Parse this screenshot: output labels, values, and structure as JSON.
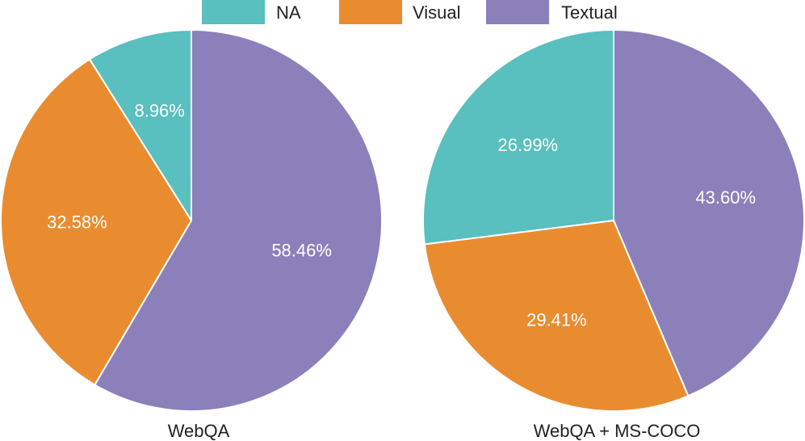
{
  "colors": {
    "NA": "#59bfbf",
    "Visual": "#e98c30",
    "Textual": "#8b80ba",
    "edge": "#ffffff",
    "text": "#222222",
    "slice_text": "#ffffff"
  },
  "legend": {
    "placement": "top-center",
    "entries": [
      "NA",
      "Visual",
      "Textual"
    ]
  },
  "chart_data": [
    {
      "type": "pie",
      "title": "WebQA",
      "slices": [
        {
          "name": "Textual",
          "value": 58.46,
          "label": "58.46%"
        },
        {
          "name": "Visual",
          "value": 32.58,
          "label": "32.58%"
        },
        {
          "name": "NA",
          "value": 8.96,
          "label": "8.96%"
        }
      ]
    },
    {
      "type": "pie",
      "title": "WebQA + MS-COCO",
      "slices": [
        {
          "name": "Textual",
          "value": 43.6,
          "label": "43.60%"
        },
        {
          "name": "Visual",
          "value": 29.41,
          "label": "29.41%"
        },
        {
          "name": "NA",
          "value": 26.99,
          "label": "26.99%"
        }
      ]
    }
  ]
}
